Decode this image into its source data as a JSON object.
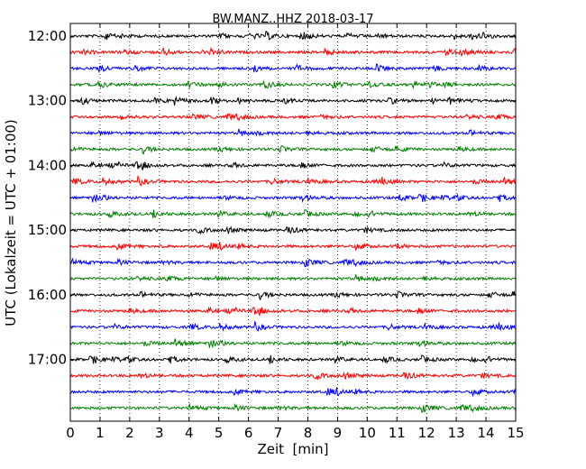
{
  "chart_data": {
    "type": "line",
    "title": "BW.MANZ..HHZ 2018-03-17",
    "xlabel": "Zeit  [min]",
    "ylabel": "UTC (Lokalzeit = UTC + 01:00)",
    "xlim": [
      0,
      15
    ],
    "x_ticks": [
      "0",
      "1",
      "2",
      "3",
      "4",
      "5",
      "6",
      "7",
      "8",
      "9",
      "10",
      "11",
      "12",
      "13",
      "14",
      "15"
    ],
    "y_ticks": [
      "12:00",
      "13:00",
      "14:00",
      "15:00",
      "16:00",
      "17:00"
    ],
    "grid": "vertical-dotted",
    "trace_interval_minutes": 15,
    "traces_start": "12:00",
    "trace_count": 24,
    "colors": [
      "#000000",
      "#ff0000",
      "#0000ff",
      "#007f00"
    ]
  }
}
